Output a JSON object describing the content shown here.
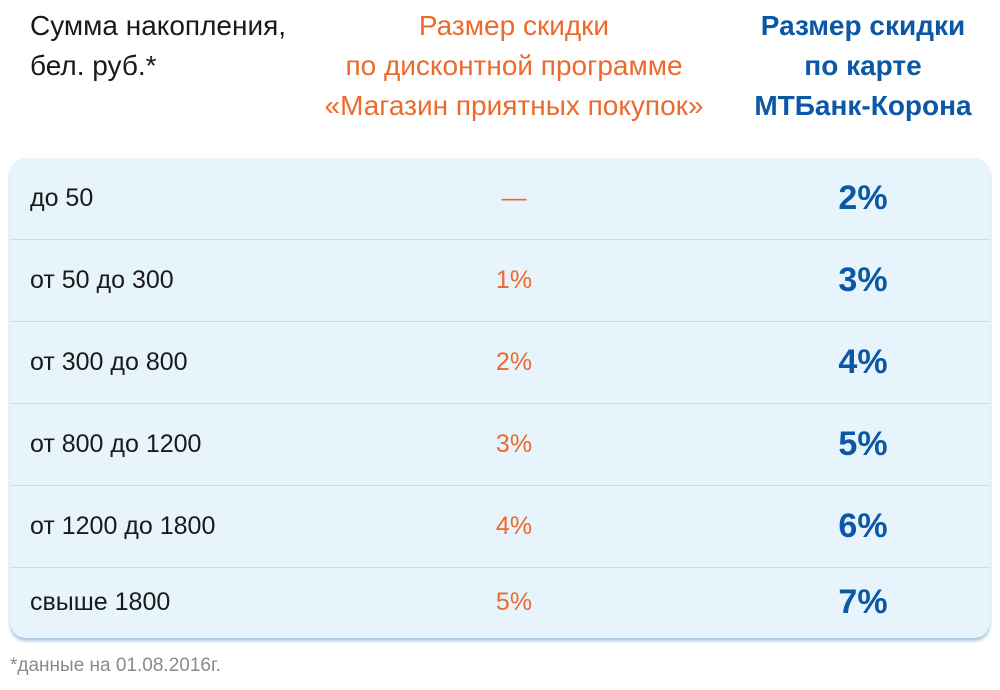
{
  "header": {
    "col1": [
      "Сумма накопления,",
      "бел. руб.*"
    ],
    "col2": [
      "Размер скидки",
      "по дисконтной программе",
      "«Магазин приятных покупок»"
    ],
    "col3": [
      "Размер скидки",
      "по карте",
      "МТБанк-Корона"
    ]
  },
  "rows": [
    {
      "range": "до 50",
      "store_discount": "—",
      "card_discount": "2%"
    },
    {
      "range": "от 50 до 300",
      "store_discount": "1%",
      "card_discount": "3%"
    },
    {
      "range": "от 300 до 800",
      "store_discount": "2%",
      "card_discount": "4%"
    },
    {
      "range": "от 800 до 1200",
      "store_discount": "3%",
      "card_discount": "5%"
    },
    {
      "range": "от 1200 до 1800",
      "store_discount": "4%",
      "card_discount": "6%"
    },
    {
      "range": "свыше 1800",
      "store_discount": "5%",
      "card_discount": "7%"
    }
  ],
  "footnote": "*данные на 01.08.2016г.",
  "colors": {
    "store_accent": "#ec6a2c",
    "card_accent": "#0b58a6",
    "table_background": "#e7f4fc"
  }
}
